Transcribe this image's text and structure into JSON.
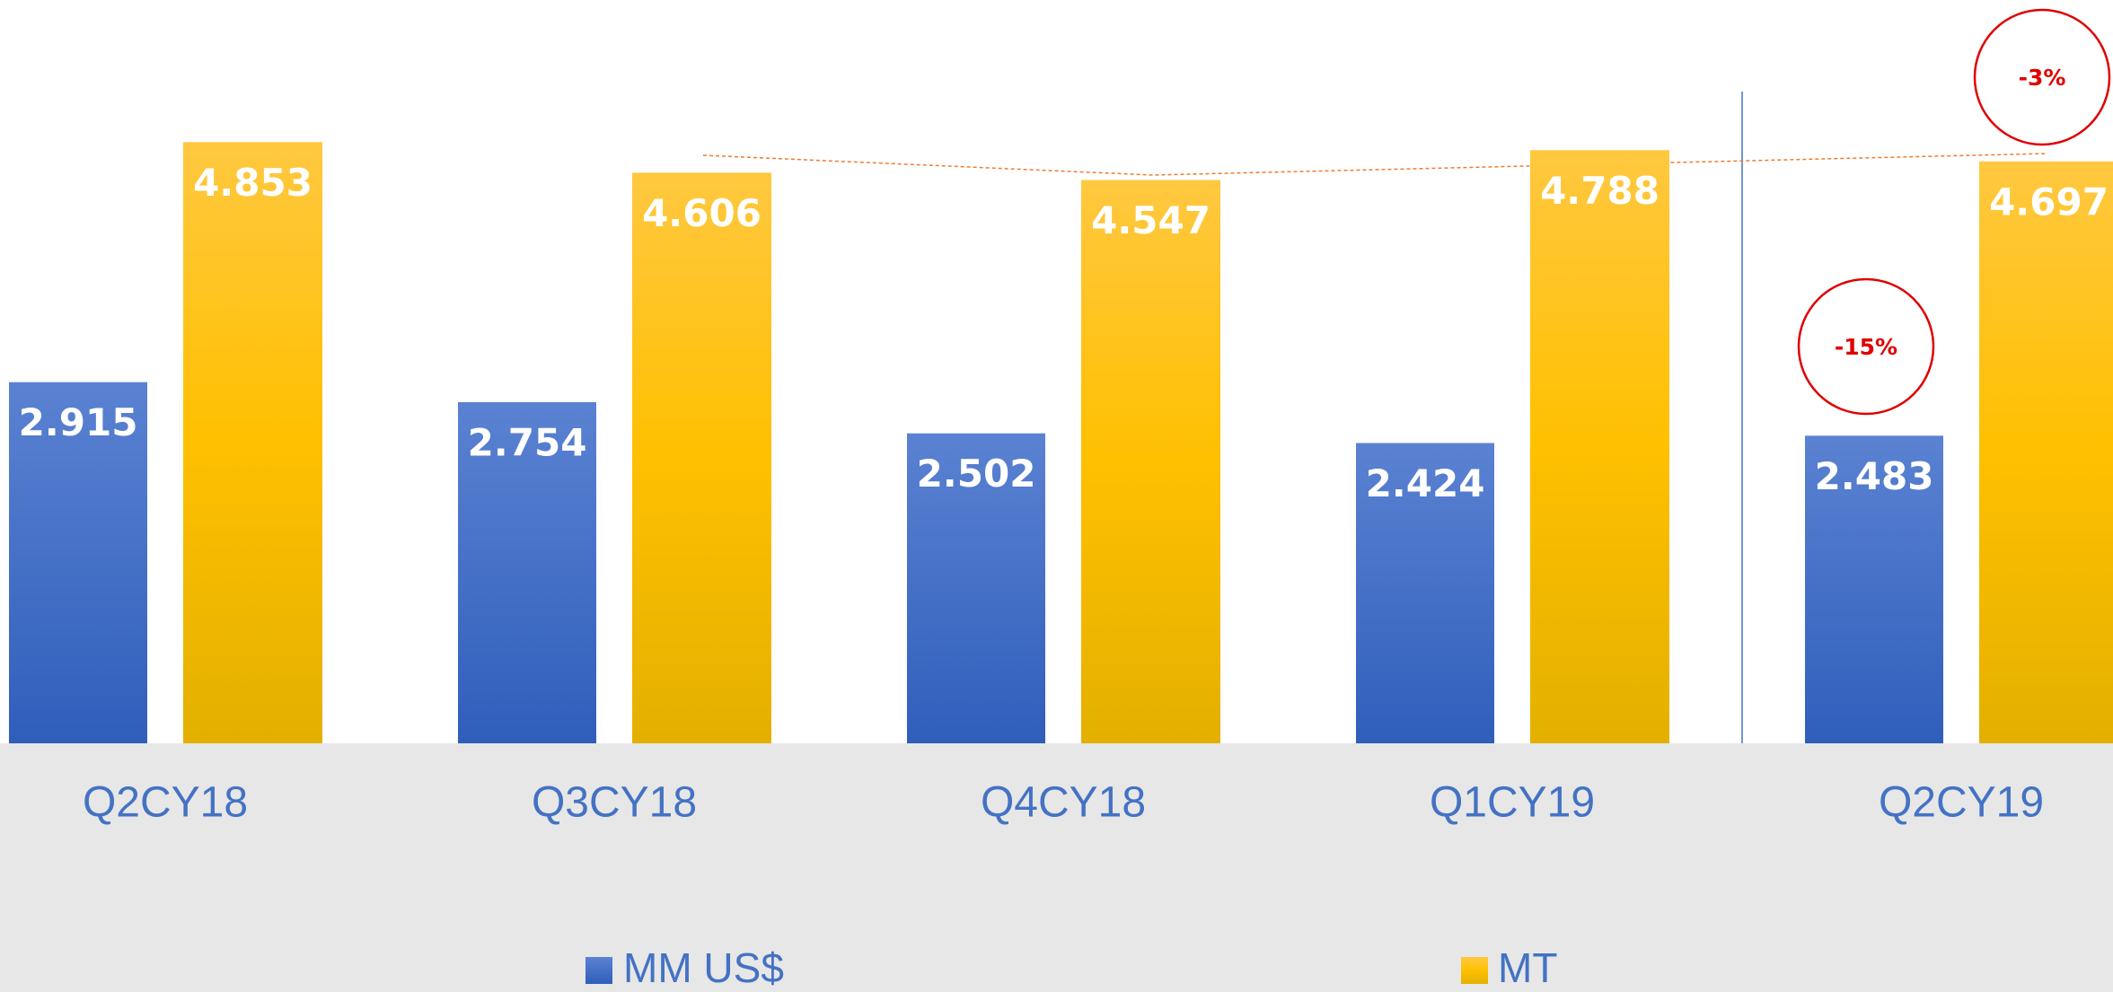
{
  "chart_data": {
    "type": "bar",
    "categories": [
      "Q2CY18",
      "Q3CY18",
      "Q4CY18",
      "Q1CY19",
      "Q2CY19"
    ],
    "series": [
      {
        "name": "MM US$",
        "color": "#4472c4",
        "values": [
          2.915,
          2.754,
          2.502,
          2.424,
          2.483
        ]
      },
      {
        "name": "MT",
        "color": "#ffc000",
        "values": [
          4.853,
          4.606,
          4.547,
          4.788,
          4.697
        ]
      }
    ],
    "ylim": [
      0,
      6
    ],
    "annotations": [
      "-15%",
      "-3%"
    ]
  }
}
